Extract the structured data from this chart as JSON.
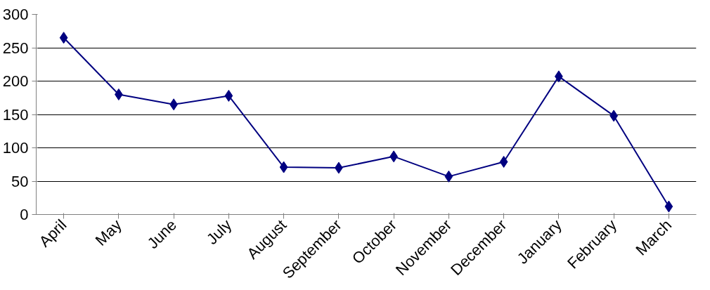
{
  "chart_data": {
    "type": "line",
    "categories": [
      "April",
      "May",
      "June",
      "July",
      "August",
      "September",
      "October",
      "November",
      "December",
      "January",
      "February",
      "March"
    ],
    "series": [
      {
        "color": "#000080",
        "values": [
          265,
          180,
          165,
          178,
          71,
          70,
          87,
          57,
          79,
          207,
          148,
          12
        ]
      }
    ],
    "ylim": [
      0,
      300
    ],
    "yticks": [
      0,
      50,
      100,
      150,
      200,
      250,
      300
    ],
    "grid": "y",
    "marker": "diamond",
    "line_style": "solid"
  }
}
